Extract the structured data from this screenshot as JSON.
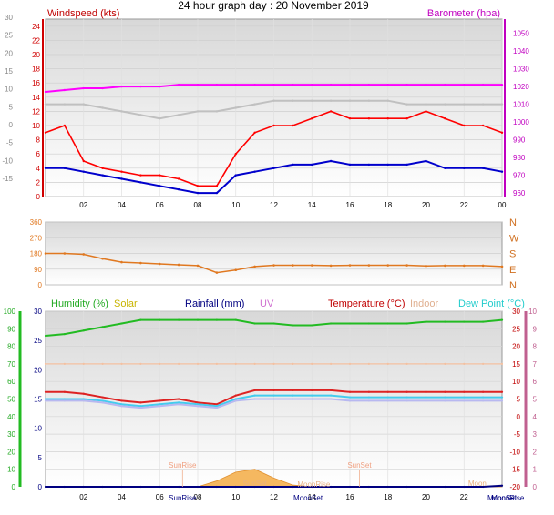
{
  "title": "24 hour graph day : 20 November 2019",
  "chart_data": [
    {
      "type": "line",
      "panel": "wind-pressure",
      "ylabel_left": "Windspeed (kts)",
      "ylabel_right": "Barometer (hpa)",
      "x_ticks": [
        "02",
        "04",
        "06",
        "08",
        "10",
        "12",
        "14",
        "16",
        "18",
        "20",
        "22",
        "00"
      ],
      "y_left_inner_ticks": [
        "0",
        "2",
        "4",
        "6",
        "8",
        "10",
        "12",
        "14",
        "16",
        "18",
        "20",
        "22",
        "24"
      ],
      "y_left_outer_ticks": [
        "-15",
        "-10",
        "-5",
        "0",
        "5",
        "10",
        "15",
        "20",
        "25",
        "30"
      ],
      "y_right_ticks": [
        "960",
        "970",
        "980",
        "990",
        "1000",
        "1010",
        "1020",
        "1030",
        "1040",
        "1050"
      ],
      "ylim_left": [
        0,
        25
      ],
      "ylim_right": [
        958,
        1058
      ],
      "hours": [
        0,
        1,
        2,
        3,
        4,
        5,
        6,
        7,
        8,
        9,
        10,
        11,
        12,
        13,
        14,
        15,
        16,
        17,
        18,
        19,
        20,
        21,
        22,
        23,
        24
      ],
      "series": [
        {
          "name": "Windspeed (kts)",
          "color": "#ff0000",
          "values": [
            9,
            10,
            5,
            4,
            3.5,
            3,
            3,
            2.5,
            1.5,
            1.5,
            6,
            9,
            10,
            10,
            11,
            12,
            11,
            11,
            11,
            11,
            12,
            11,
            10,
            10,
            9
          ]
        },
        {
          "name": "",
          "color": "#0000cc",
          "values": [
            4,
            4,
            3.5,
            3,
            2.5,
            2,
            1.5,
            1,
            0.5,
            0.5,
            3,
            3.5,
            4,
            4.5,
            4.5,
            5,
            4.5,
            4.5,
            4.5,
            4.5,
            5,
            4,
            4,
            4,
            3.5
          ]
        },
        {
          "name": "",
          "color": "#c0c0c0",
          "values": [
            13,
            13,
            13,
            12.5,
            12,
            11.5,
            11,
            11.5,
            12,
            12,
            12.5,
            13,
            13.5,
            13.5,
            13.5,
            13.5,
            13.5,
            13.5,
            13.5,
            13,
            13,
            13,
            13,
            13,
            13
          ]
        },
        {
          "name": "Barometer (hpa)",
          "color": "#ff00ff",
          "values": [
            1017,
            1018,
            1019,
            1019,
            1020,
            1020,
            1020,
            1021,
            1021,
            1021,
            1021,
            1021,
            1021,
            1021,
            1021,
            1021,
            1021,
            1021,
            1021,
            1021,
            1021,
            1021,
            1021,
            1021,
            1021
          ]
        }
      ]
    },
    {
      "type": "line",
      "panel": "wind-direction",
      "y_ticks": [
        "0",
        "90",
        "180",
        "270",
        "360"
      ],
      "compass": [
        "N",
        "E",
        "S",
        "W",
        "N"
      ],
      "ylim": [
        0,
        360
      ],
      "hours": [
        0,
        1,
        2,
        3,
        4,
        5,
        6,
        7,
        8,
        9,
        10,
        11,
        12,
        13,
        14,
        15,
        16,
        17,
        18,
        19,
        20,
        21,
        22,
        23,
        24
      ],
      "series": [
        {
          "name": "",
          "color": "#e07820",
          "values": [
            180,
            180,
            175,
            150,
            130,
            125,
            120,
            115,
            110,
            70,
            85,
            105,
            112,
            112,
            112,
            110,
            112,
            112,
            112,
            112,
            108,
            110,
            110,
            110,
            105
          ]
        }
      ]
    },
    {
      "type": "line",
      "panel": "humidity-temperature",
      "legend": [
        "Humidity (%)",
        "Solar",
        "Rainfall (mm)",
        "UV",
        "Temperature (°C)",
        "Indoor",
        "Dew Point (°C)"
      ],
      "y_humidity_ticks": [
        "0",
        "10",
        "20",
        "30",
        "40",
        "50",
        "60",
        "70",
        "80",
        "90",
        "100"
      ],
      "y_rain_ticks": [
        "0",
        "5",
        "10",
        "15",
        "20",
        "25",
        "30"
      ],
      "y_temp_ticks": [
        "-20",
        "-15",
        "-10",
        "-5",
        "0",
        "5",
        "10",
        "15",
        "20",
        "25",
        "30"
      ],
      "y_uv_ticks": [
        "0",
        "1",
        "2",
        "3",
        "4",
        "5",
        "6",
        "7",
        "8",
        "9",
        "10"
      ],
      "x_ticks": [
        "02",
        "04",
        "06",
        "08",
        "10",
        "12",
        "14",
        "16",
        "18",
        "20",
        "22"
      ],
      "annotations": [
        "SunRise",
        "SunSet",
        "SunRise",
        "SunSet",
        "MoonSet",
        "MoonRise",
        "MoonSet",
        "MoonRise",
        "Moon"
      ],
      "hours": [
        0,
        1,
        2,
        3,
        4,
        5,
        6,
        7,
        8,
        9,
        10,
        11,
        12,
        13,
        14,
        15,
        16,
        17,
        18,
        19,
        20,
        21,
        22,
        23,
        24
      ],
      "series": [
        {
          "name": "Humidity (%)",
          "color": "#22bb22",
          "axis": "humidity",
          "values": [
            86,
            87,
            89,
            91,
            93,
            95,
            95,
            95,
            95,
            95,
            95,
            93,
            93,
            92,
            92,
            93,
            93,
            93,
            93,
            93,
            94,
            94,
            94,
            94,
            95
          ]
        },
        {
          "name": "Temperature (°C)",
          "color": "#dd2222",
          "axis": "temp",
          "values": [
            7,
            7,
            6.5,
            5.5,
            4.5,
            4,
            4.5,
            5,
            4,
            3.5,
            6,
            7.5,
            7.5,
            7.5,
            7.5,
            7.5,
            7,
            7,
            7,
            7,
            7,
            7,
            7,
            7,
            7
          ]
        },
        {
          "name": "Dew Point (°C)",
          "color": "#44ccee",
          "axis": "temp",
          "values": [
            5,
            5,
            5,
            4.5,
            3.5,
            3,
            3.5,
            4,
            3.5,
            3,
            5,
            6,
            6,
            6,
            6,
            6,
            5.5,
            5.5,
            5.5,
            5.5,
            5.5,
            5.5,
            5.5,
            5.5,
            5.5
          ]
        },
        {
          "name": "",
          "color": "#b8b8f0",
          "axis": "temp",
          "values": [
            4.5,
            4.5,
            4.5,
            4,
            3,
            2.5,
            3,
            3.5,
            3,
            2.5,
            4.5,
            5,
            5,
            5,
            5,
            5,
            4.5,
            4.5,
            4.5,
            4.5,
            4.5,
            4.5,
            4.5,
            4.5,
            4.5
          ]
        },
        {
          "name": "Indoor",
          "color": "#f4c0a0",
          "axis": "temp",
          "values": [
            15,
            15,
            15,
            15,
            15,
            15,
            15,
            15,
            15,
            15,
            15,
            15,
            15,
            15,
            15,
            15,
            15,
            15,
            15,
            15,
            15,
            15,
            15,
            15,
            15
          ]
        },
        {
          "name": "Rainfall (mm)",
          "color": "#000080",
          "axis": "rain",
          "values": [
            0,
            0,
            0,
            0,
            0,
            0,
            0,
            0,
            0,
            0,
            0,
            0,
            0,
            0,
            0,
            0,
            0,
            0,
            0,
            0,
            0,
            0,
            0,
            0,
            0.2
          ]
        },
        {
          "name": "Solar",
          "color": "#f0a040",
          "axis": "solar",
          "values": [
            0,
            0,
            0,
            0,
            0,
            0,
            0,
            0,
            0,
            1,
            2.5,
            3,
            1.5,
            0.3,
            0,
            0,
            0,
            0,
            0,
            0,
            0,
            0,
            0,
            0,
            0
          ]
        }
      ]
    }
  ]
}
